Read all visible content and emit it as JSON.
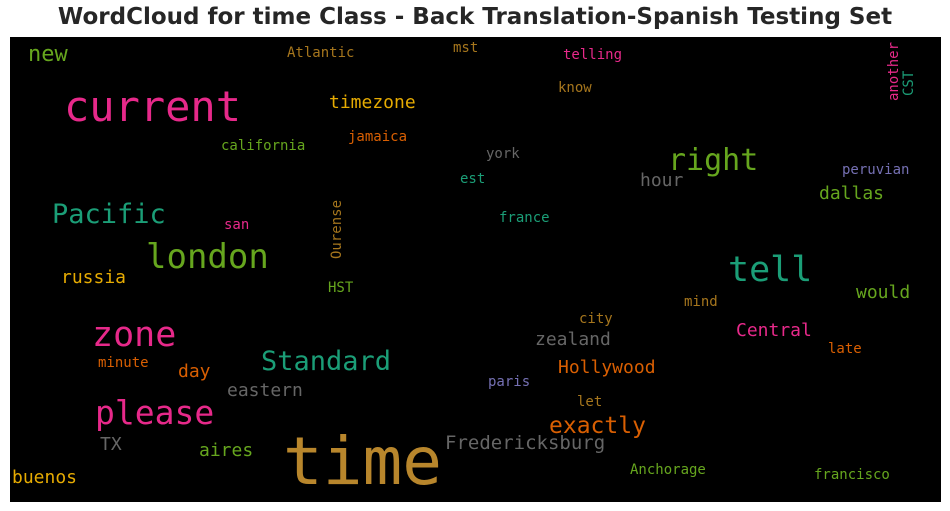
{
  "title": "WordCloud for time Class - Back Translation-Spanish Testing Set",
  "words": [
    {
      "text": "time",
      "color": "#b8862c"
    },
    {
      "text": "current",
      "color": "#e7298a"
    },
    {
      "text": "london",
      "color": "#66a61e"
    },
    {
      "text": "zone",
      "color": "#e7298a"
    },
    {
      "text": "please",
      "color": "#e7298a"
    },
    {
      "text": "tell",
      "color": "#1b9e77"
    },
    {
      "text": "right",
      "color": "#66a61e"
    },
    {
      "text": "Standard",
      "color": "#1b9e77"
    },
    {
      "text": "Pacific",
      "color": "#1b9e77"
    },
    {
      "text": "new",
      "color": "#66a61e"
    },
    {
      "text": "timezone",
      "color": "#e6ab02"
    },
    {
      "text": "exactly",
      "color": "#d95f02"
    },
    {
      "text": "Fredericksburg",
      "color": "#666666"
    },
    {
      "text": "Hollywood",
      "color": "#d95f02"
    },
    {
      "text": "zealand",
      "color": "#666666"
    },
    {
      "text": "Central",
      "color": "#e7298a"
    },
    {
      "text": "eastern",
      "color": "#666666"
    },
    {
      "text": "russia",
      "color": "#e6ab02"
    },
    {
      "text": "dallas",
      "color": "#66a61e"
    },
    {
      "text": "would",
      "color": "#66a61e"
    },
    {
      "text": "hour",
      "color": "#666666"
    },
    {
      "text": "aires",
      "color": "#66a61e"
    },
    {
      "text": "buenos",
      "color": "#e6ab02"
    },
    {
      "text": "day",
      "color": "#d95f02"
    },
    {
      "text": "TX",
      "color": "#666666"
    },
    {
      "text": "california",
      "color": "#66a61e"
    },
    {
      "text": "Atlantic",
      "color": "#a6761d"
    },
    {
      "text": "mst",
      "color": "#a6761d"
    },
    {
      "text": "telling",
      "color": "#e7298a"
    },
    {
      "text": "know",
      "color": "#a6761d"
    },
    {
      "text": "jamaica",
      "color": "#d95f02"
    },
    {
      "text": "york",
      "color": "#666666"
    },
    {
      "text": "est",
      "color": "#1b9e77"
    },
    {
      "text": "peruvian",
      "color": "#7570b3"
    },
    {
      "text": "france",
      "color": "#1b9e77"
    },
    {
      "text": "san",
      "color": "#e7298a"
    },
    {
      "text": "Ourense",
      "color": "#a6761d"
    },
    {
      "text": "HST",
      "color": "#66a61e"
    },
    {
      "text": "mind",
      "color": "#a6761d"
    },
    {
      "text": "city",
      "color": "#a6761d"
    },
    {
      "text": "late",
      "color": "#d95f02"
    },
    {
      "text": "minute",
      "color": "#d95f02"
    },
    {
      "text": "paris",
      "color": "#7570b3"
    },
    {
      "text": "let",
      "color": "#a6761d"
    },
    {
      "text": "Anchorage",
      "color": "#66a61e"
    },
    {
      "text": "francisco",
      "color": "#66a61e"
    },
    {
      "text": "another",
      "color": "#e7298a"
    },
    {
      "text": "CST",
      "color": "#1b9e77"
    }
  ]
}
